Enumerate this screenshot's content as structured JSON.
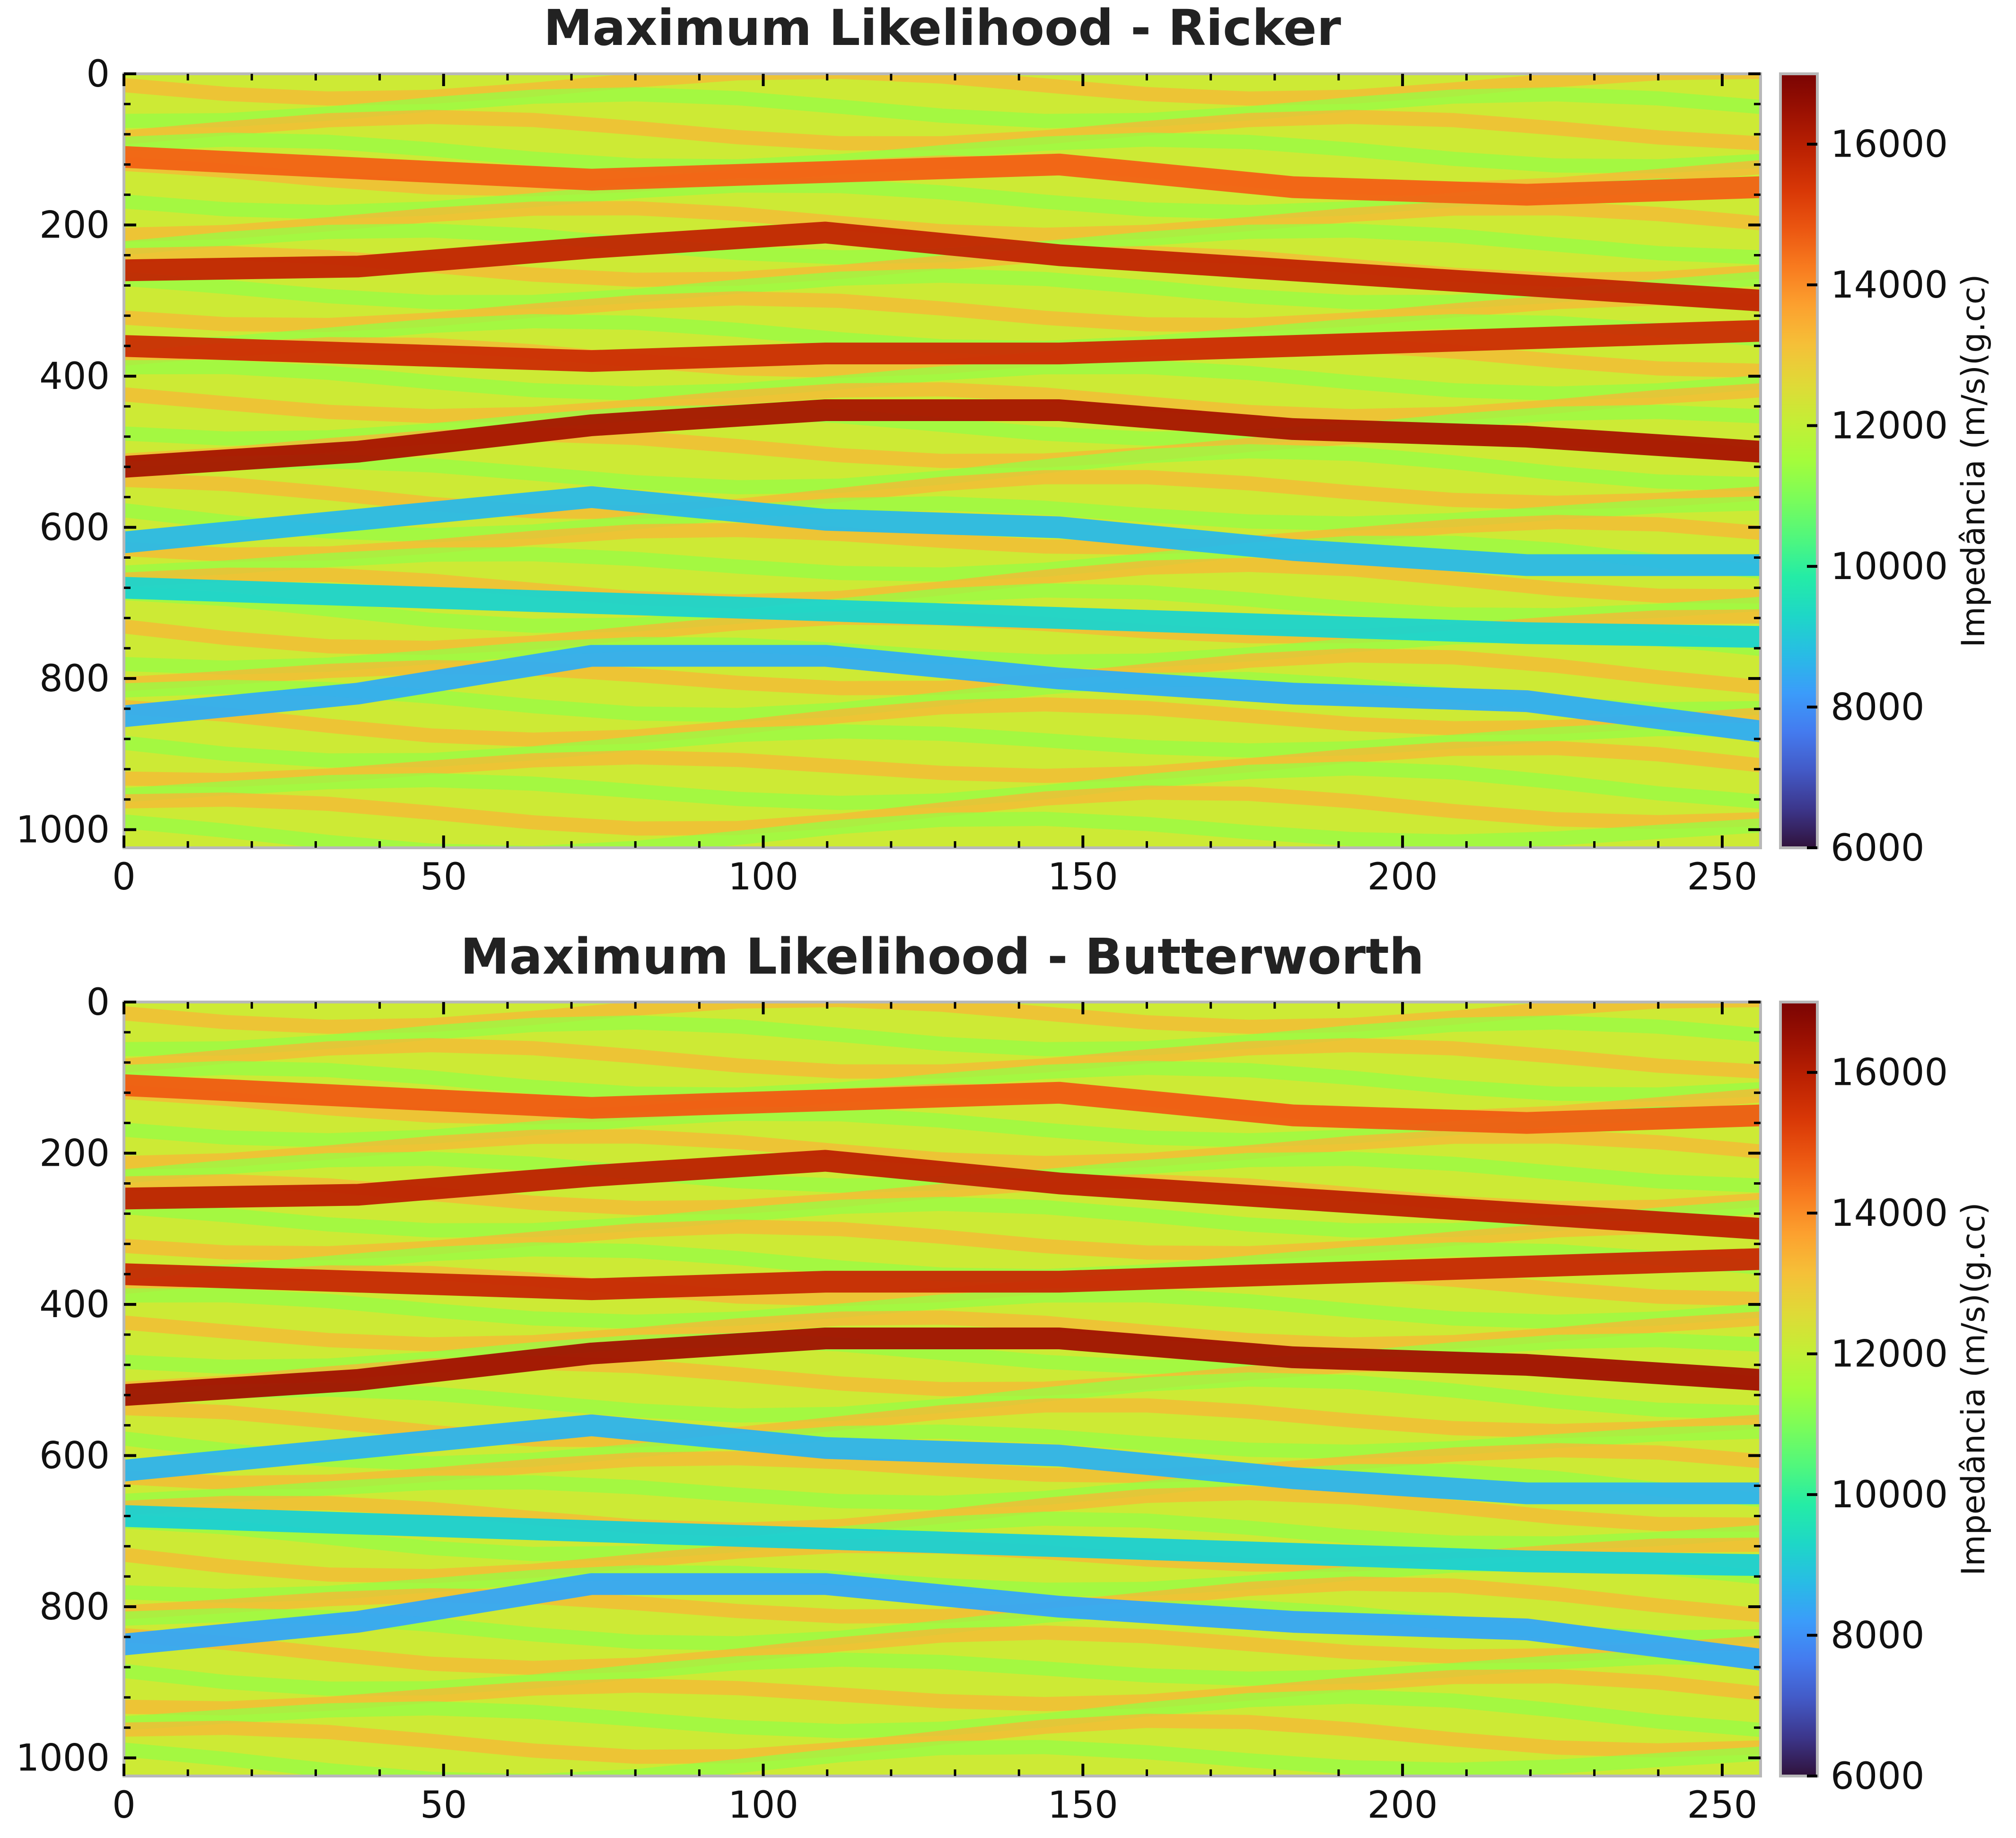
{
  "chart_data": [
    {
      "type": "heatmap",
      "title": "Maximum Likelihood - Ricker",
      "xlabel": "",
      "ylabel": "",
      "xlim": [
        0,
        256
      ],
      "ylim": [
        1024,
        0
      ],
      "x_ticks": [
        0,
        50,
        100,
        150,
        200,
        250
      ],
      "y_ticks": [
        0,
        200,
        400,
        600,
        800,
        1000
      ],
      "grid": false,
      "colorbar": {
        "label": "Impedância (m/s)(g.cc)",
        "range": [
          6000,
          17000
        ],
        "ticks": [
          6000,
          8000,
          10000,
          12000,
          14000,
          16000
        ],
        "colormap": "turbo"
      },
      "horizons": [
        {
          "y": [
            110,
            125,
            140,
            130,
            120,
            150,
            160,
            150
          ],
          "value": 14600
        },
        {
          "y": [
            260,
            255,
            230,
            210,
            240,
            260,
            280,
            300
          ],
          "value": 15800
        },
        {
          "y": [
            360,
            370,
            380,
            370,
            370,
            360,
            350,
            340
          ],
          "value": 15600
        },
        {
          "y": [
            520,
            500,
            465,
            445,
            445,
            470,
            480,
            500
          ],
          "value": 16300
        },
        {
          "y": [
            620,
            590,
            560,
            590,
            600,
            630,
            650,
            650
          ],
          "value": 8700
        },
        {
          "y": [
            680,
            690,
            700,
            710,
            720,
            730,
            740,
            745
          ],
          "value": 9200
        },
        {
          "y": [
            850,
            820,
            770,
            770,
            800,
            820,
            830,
            870
          ],
          "value": 8500
        }
      ]
    },
    {
      "type": "heatmap",
      "title": "Maximum Likelihood - Butterworth",
      "xlabel": "",
      "ylabel": "",
      "xlim": [
        0,
        256
      ],
      "ylim": [
        1024,
        0
      ],
      "x_ticks": [
        0,
        50,
        100,
        150,
        200,
        250
      ],
      "y_ticks": [
        0,
        200,
        400,
        600,
        800,
        1000
      ],
      "grid": false,
      "colorbar": {
        "label": "Impedância (m/s)(g.cc)",
        "range": [
          6000,
          17000
        ],
        "ticks": [
          6000,
          8000,
          10000,
          12000,
          14000,
          16000
        ],
        "colormap": "turbo"
      },
      "horizons": [
        {
          "y": [
            110,
            125,
            140,
            130,
            120,
            150,
            160,
            150
          ],
          "value": 14700
        },
        {
          "y": [
            260,
            255,
            230,
            210,
            240,
            260,
            280,
            300
          ],
          "value": 15900
        },
        {
          "y": [
            360,
            370,
            380,
            370,
            370,
            360,
            350,
            340
          ],
          "value": 15700
        },
        {
          "y": [
            520,
            500,
            465,
            445,
            445,
            470,
            480,
            500
          ],
          "value": 16400
        },
        {
          "y": [
            620,
            590,
            560,
            590,
            600,
            630,
            650,
            650
          ],
          "value": 8600
        },
        {
          "y": [
            680,
            690,
            700,
            710,
            720,
            730,
            740,
            745
          ],
          "value": 9100
        },
        {
          "y": [
            850,
            820,
            770,
            770,
            800,
            820,
            830,
            870
          ],
          "value": 8400
        }
      ]
    }
  ]
}
